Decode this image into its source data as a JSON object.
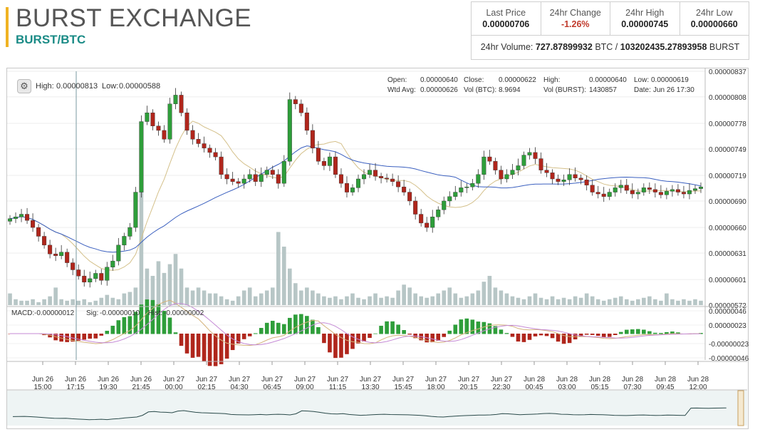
{
  "header": {
    "title": "BURST EXCHANGE",
    "pair": "BURST/BTC",
    "accent_color": "#f0b323",
    "pair_color": "#1a8b86"
  },
  "stats": {
    "last_price_label": "Last Price",
    "last_price": "0.00000706",
    "change_label": "24hr Change",
    "change": "-1.26%",
    "high_label": "24hr High",
    "high": "0.00000745",
    "low_label": "24hr Low",
    "low": "0.00000660",
    "volume_label": "24hr Volume:",
    "volume_btc": "727.87899932",
    "volume_btc_unit": "BTC /",
    "volume_burst": "103202435.27893958",
    "volume_burst_unit": "BURST"
  },
  "chart_header": {
    "high_label": "High:",
    "high": "0.00000813",
    "low_label": "Low:",
    "low": "0.00000588",
    "open_label": "Open:",
    "open": "0.00000640",
    "close_label": "Close:",
    "close": "0.00000622",
    "h_label": "High:",
    "h": "0.00000640",
    "l_label": "Low:",
    "l": "0.00000619",
    "wtd_label": "Wtd Avg:",
    "wtd": "0.00000626",
    "volbtc_label": "Vol (BTC):",
    "volbtc": "8.9694",
    "volburst_label": "Vol (BURST):",
    "volburst": "1430857",
    "date_label": "Date:",
    "date": "Jun 26 17:30"
  },
  "macd_header": {
    "macd_label": "MACD:",
    "macd": "-0.00000012",
    "sig_label": "Sig:",
    "sig": "-0.00000010",
    "hist_label": "Hist:",
    "hist": "-0.00000002"
  },
  "chart_data": {
    "type": "candlestick",
    "y_ticks": [
      "0.00000837",
      "0.00000808",
      "0.00000778",
      "0.00000749",
      "0.00000719",
      "0.00000690",
      "0.00000660",
      "0.00000631",
      "0.00000601",
      "0.00000572"
    ],
    "macd_ticks": [
      "0.00000046",
      "0.00000023",
      "-0.00000023",
      "-0.00000046"
    ],
    "x_ticks": [
      [
        "Jun 26",
        "15:00"
      ],
      [
        "Jun 26",
        "17:15"
      ],
      [
        "Jun 26",
        "19:30"
      ],
      [
        "Jun 26",
        "21:45"
      ],
      [
        "Jun 27",
        "00:00"
      ],
      [
        "Jun 27",
        "02:15"
      ],
      [
        "Jun 27",
        "04:30"
      ],
      [
        "Jun 27",
        "06:45"
      ],
      [
        "Jun 27",
        "09:00"
      ],
      [
        "Jun 27",
        "11:15"
      ],
      [
        "Jun 27",
        "13:30"
      ],
      [
        "Jun 27",
        "15:45"
      ],
      [
        "Jun 27",
        "18:00"
      ],
      [
        "Jun 27",
        "20:15"
      ],
      [
        "Jun 27",
        "22:30"
      ],
      [
        "Jun 28",
        "00:45"
      ],
      [
        "Jun 28",
        "03:00"
      ],
      [
        "Jun 28",
        "05:15"
      ],
      [
        "Jun 28",
        "07:30"
      ],
      [
        "Jun 28",
        "09:45"
      ],
      [
        "Jun 28",
        "12:00"
      ]
    ],
    "closes": [
      670,
      672,
      675,
      668,
      660,
      650,
      640,
      630,
      628,
      632,
      620,
      612,
      605,
      598,
      602,
      608,
      600,
      615,
      622,
      640,
      650,
      660,
      700,
      780,
      790,
      775,
      770,
      760,
      800,
      810,
      790,
      770,
      760,
      755,
      750,
      745,
      740,
      720,
      715,
      712,
      710,
      715,
      720,
      712,
      720,
      725,
      720,
      710,
      735,
      805,
      800,
      790,
      770,
      750,
      735,
      730,
      740,
      720,
      710,
      700,
      705,
      715,
      720,
      725,
      718,
      716,
      715,
      712,
      706,
      700,
      690,
      675,
      665,
      660,
      672,
      680,
      690,
      695,
      700,
      705,
      706,
      710,
      720,
      740,
      735,
      725,
      715,
      720,
      725,
      730,
      742,
      745,
      738,
      725,
      722,
      715,
      712,
      714,
      720,
      716,
      714,
      708,
      700,
      698,
      695,
      700,
      705,
      708,
      702,
      698,
      700,
      705,
      703,
      700,
      697,
      701,
      703,
      700,
      698,
      702,
      704,
      706
    ],
    "volumes": [
      8,
      4,
      3,
      3,
      4,
      2,
      4,
      6,
      12,
      4,
      3,
      4,
      3,
      4,
      2,
      3,
      5,
      7,
      5,
      4,
      8,
      9,
      12,
      78,
      25,
      20,
      30,
      22,
      28,
      35,
      25,
      12,
      10,
      12,
      10,
      8,
      8,
      6,
      4,
      3,
      6,
      10,
      12,
      6,
      8,
      10,
      12,
      50,
      40,
      25,
      15,
      10,
      12,
      10,
      8,
      6,
      5,
      6,
      4,
      6,
      8,
      5,
      4,
      6,
      8,
      5,
      6,
      5,
      10,
      14,
      12,
      8,
      6,
      5,
      6,
      8,
      10,
      12,
      8,
      5,
      6,
      8,
      10,
      16,
      20,
      12,
      10,
      8,
      6,
      5,
      4,
      6,
      8,
      5,
      4,
      6,
      4,
      5,
      4,
      6,
      5,
      8,
      6,
      4,
      3,
      4,
      5,
      6,
      4,
      3,
      4,
      5,
      6,
      4,
      3,
      8,
      4,
      3,
      4,
      3,
      4,
      3
    ]
  }
}
